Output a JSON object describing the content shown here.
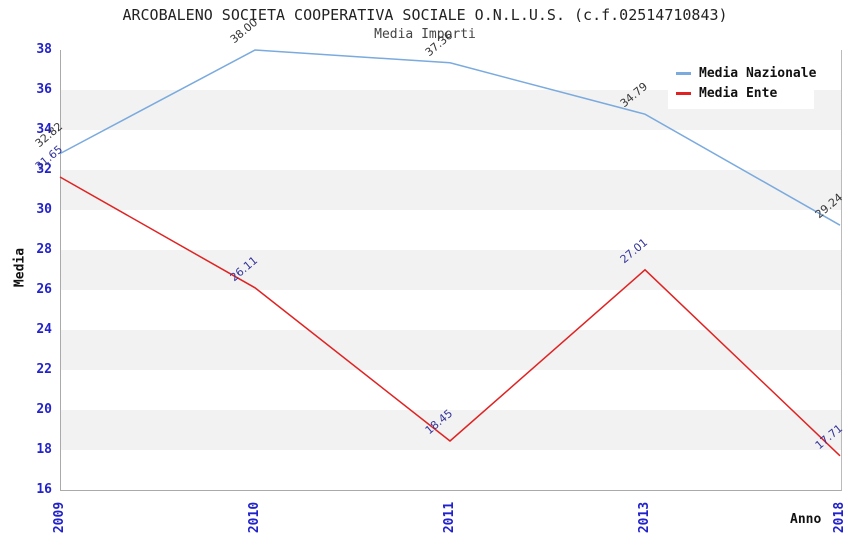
{
  "header": {
    "title": "ARCOBALENO SOCIETA COOPERATIVA SOCIALE O.N.L.U.S. (c.f.02514710843)",
    "subtitle": "Media Importi"
  },
  "colors": {
    "tick_label": "#2222cc",
    "gridline": "#d9d9d9",
    "band_gray": "#f2f2f2",
    "axis_border": "#aaaaaa"
  },
  "chart_data": {
    "type": "line",
    "title": "ARCOBALENO SOCIETA COOPERATIVA SOCIALE O.N.L.U.S. (c.f.02514710843)",
    "subtitle": "Media Importi",
    "categories": [
      "2009",
      "2010",
      "2011",
      "2013",
      "2018"
    ],
    "series": [
      {
        "name": "Media Nazionale",
        "color": "#7aaade",
        "label_color": "#333333",
        "values": [
          32.82,
          38.0,
          37.36,
          34.79,
          29.24
        ]
      },
      {
        "name": "Media Ente",
        "color": "#e02222",
        "label_color": "#333399",
        "values": [
          31.65,
          26.11,
          18.45,
          27.01,
          17.71
        ]
      }
    ],
    "xlabel": "Anno",
    "ylabel": "Media",
    "ylim": [
      16,
      38
    ],
    "ytick_step": 2,
    "grid": true,
    "legend_position": "top-right",
    "point_label_decimals": 2
  }
}
